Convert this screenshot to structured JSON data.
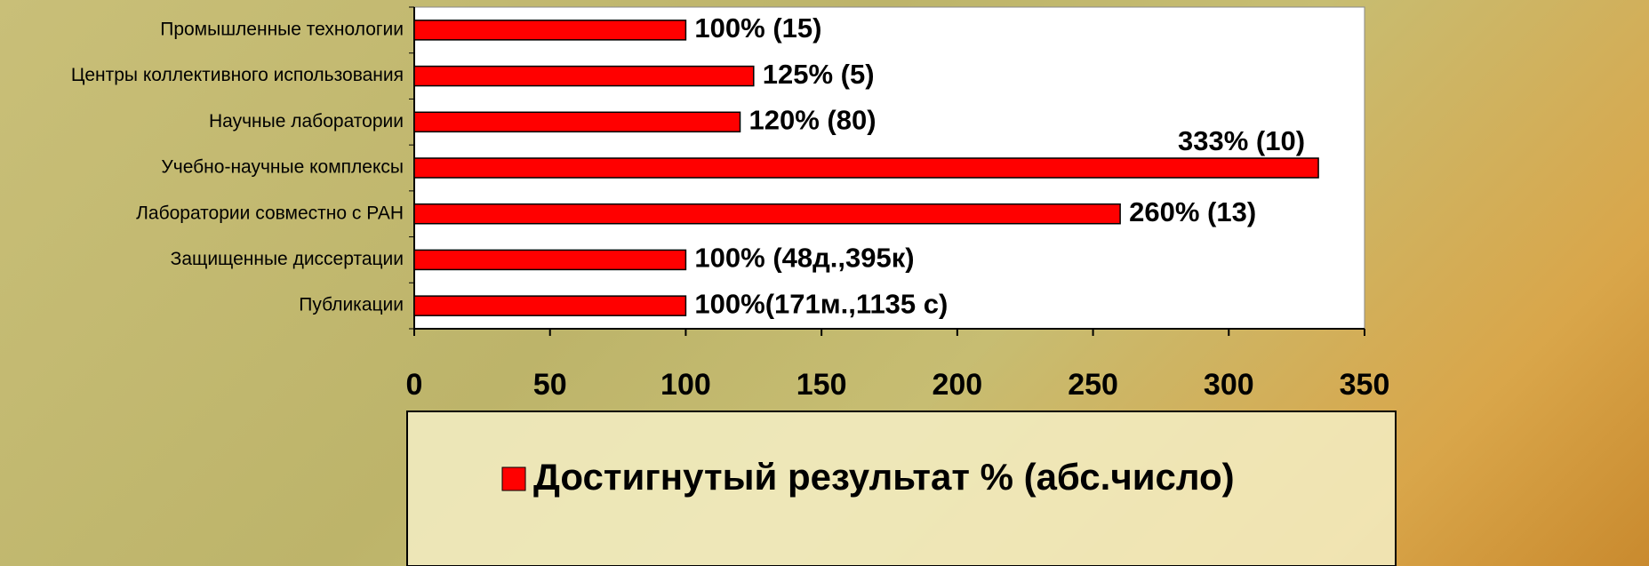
{
  "chart_data": {
    "type": "bar",
    "orientation": "horizontal",
    "categories": [
      "Промышленные технологии",
      "Центры коллективного использования",
      "Научные лаборатории",
      "Учебно-научные комплексы",
      "Лаборатории совместно с РАН",
      "Защищенные диссертации",
      "Публикации"
    ],
    "series": [
      {
        "name": "Достигнутый результат % (абс.число)",
        "color": "#ff0000",
        "values": [
          100,
          125,
          120,
          333,
          260,
          100,
          100
        ],
        "value_labels": [
          "100% (15)",
          "125% (5)",
          "120% (80)",
          "333% (10)",
          "260% (13)",
          "100% (48д.,395к)",
          "100%(171м.,1135 с)"
        ]
      }
    ],
    "xlim": [
      0,
      350
    ],
    "xticks": [
      0,
      50,
      100,
      150,
      200,
      250,
      300,
      350
    ],
    "legend": "bottom"
  }
}
